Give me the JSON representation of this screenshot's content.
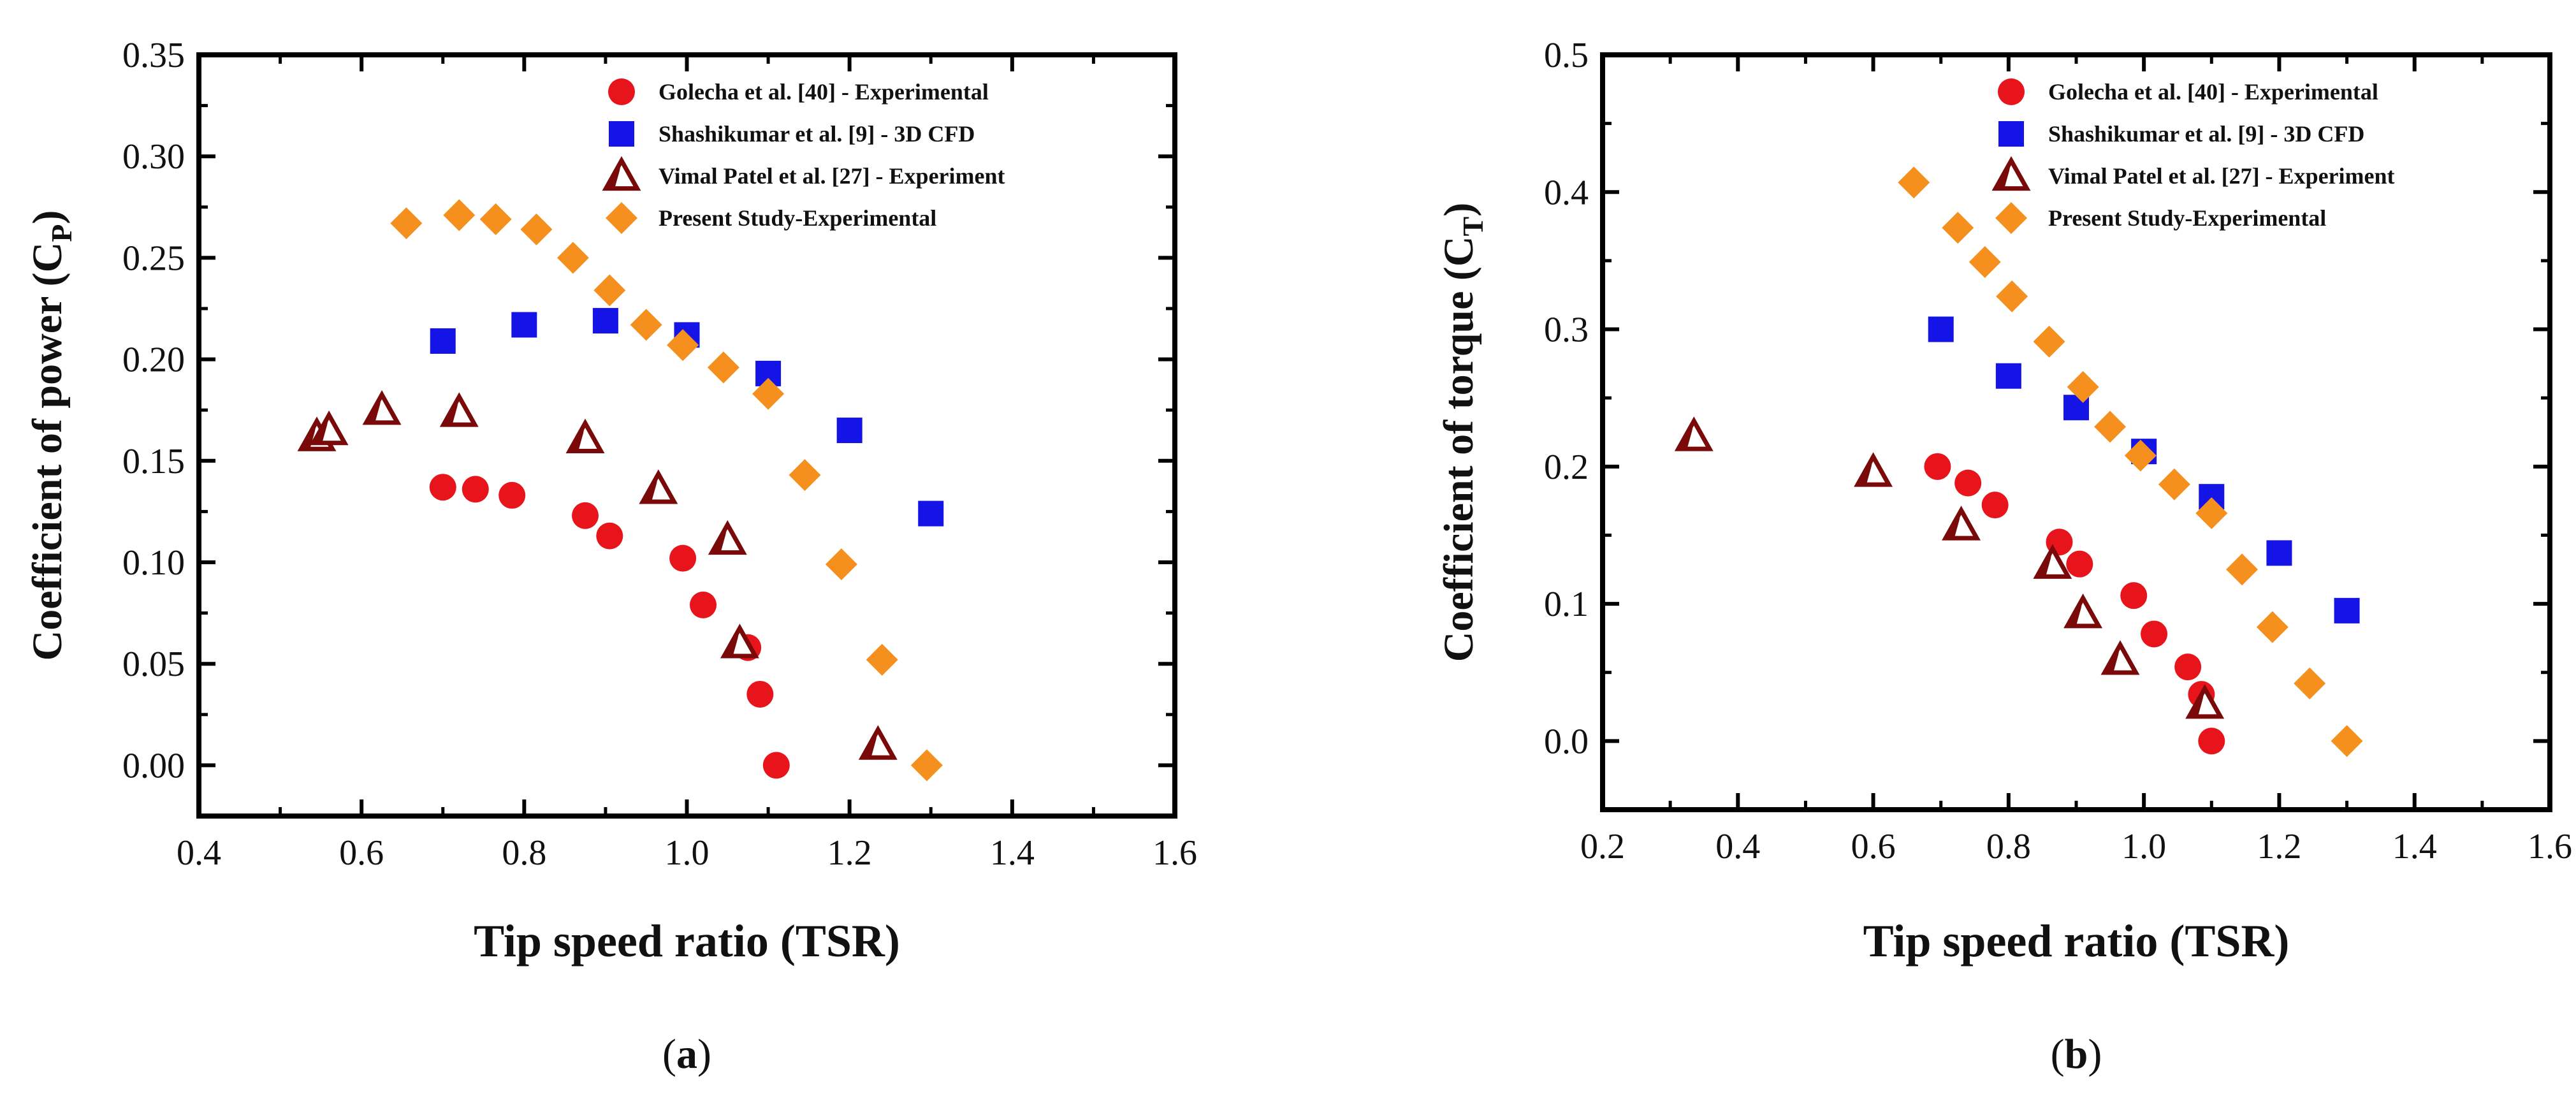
{
  "colors": {
    "golecha": "#e8141b",
    "shashikumar": "#1414e6",
    "vimal": "#7a0a0a",
    "present": "#f5901e",
    "axis": "#000000"
  },
  "chart_data": [
    {
      "type": "scatter",
      "panel_label": "(a)",
      "panel_letter": "a",
      "xlabel": "Tip speed ratio (TSR)",
      "ylabel_main": "Coefficient of power (C",
      "ylabel_sub": "P",
      "ylabel_close": ")",
      "xlim": [
        0.4,
        1.6
      ],
      "ylim": [
        -0.025,
        0.35
      ],
      "xticks": [
        "0.4",
        "0.6",
        "0.8",
        "1.0",
        "1.2",
        "1.4",
        "1.6"
      ],
      "yticks": [
        "0.00",
        "0.05",
        "0.10",
        "0.15",
        "0.20",
        "0.25",
        "0.30",
        "0.35"
      ],
      "series": [
        {
          "name": "Golecha et al. [40] - Experimental",
          "marker": "circle",
          "color_key": "golecha",
          "x": [
            0.7,
            0.74,
            0.785,
            0.875,
            0.905,
            0.995,
            1.02,
            1.075,
            1.09,
            1.11
          ],
          "y": [
            0.137,
            0.136,
            0.133,
            0.123,
            0.113,
            0.102,
            0.079,
            0.058,
            0.035,
            0.0
          ]
        },
        {
          "name": "Shashikumar et al. [9] - 3D CFD",
          "marker": "square",
          "color_key": "shashikumar",
          "x": [
            0.7,
            0.8,
            0.9,
            1.0,
            1.1,
            1.2,
            1.3
          ],
          "y": [
            0.209,
            0.217,
            0.219,
            0.212,
            0.193,
            0.165,
            0.124
          ]
        },
        {
          "name": "Vimal Patel et al. [27] - Experiment",
          "marker": "triangle",
          "color_key": "vimal",
          "x": [
            0.545,
            0.56,
            0.625,
            0.72,
            0.875,
            0.965,
            1.05,
            1.065,
            1.235
          ],
          "y": [
            0.162,
            0.165,
            0.175,
            0.174,
            0.161,
            0.136,
            0.111,
            0.06,
            0.01
          ]
        },
        {
          "name": "Present Study-Experimental",
          "marker": "diamond",
          "color_key": "present",
          "x": [
            0.655,
            0.72,
            0.765,
            0.815,
            0.86,
            0.905,
            0.95,
            0.995,
            1.045,
            1.1,
            1.145,
            1.19,
            1.24,
            1.295
          ],
          "y": [
            0.267,
            0.271,
            0.269,
            0.264,
            0.25,
            0.234,
            0.217,
            0.207,
            0.196,
            0.183,
            0.143,
            0.099,
            0.052,
            0.0
          ]
        }
      ]
    },
    {
      "type": "scatter",
      "panel_label": "(b)",
      "panel_letter": "b",
      "xlabel": "Tip speed ratio (TSR)",
      "ylabel_main": "Coefficient of torque (C",
      "ylabel_sub": "T",
      "ylabel_close": ")",
      "xlim": [
        0.2,
        1.6
      ],
      "ylim": [
        -0.05,
        0.5
      ],
      "xticks": [
        "0.2",
        "0.4",
        "0.6",
        "0.8",
        "1.0",
        "1.2",
        "1.4",
        "1.6"
      ],
      "yticks": [
        "0.0",
        "0.1",
        "0.2",
        "0.3",
        "0.4",
        "0.5"
      ],
      "series": [
        {
          "name": "Golecha et al. [40] - Experimental",
          "marker": "circle",
          "color_key": "golecha",
          "x": [
            0.695,
            0.74,
            0.78,
            0.875,
            0.905,
            0.985,
            1.015,
            1.065,
            1.085,
            1.1
          ],
          "y": [
            0.2,
            0.188,
            0.172,
            0.145,
            0.129,
            0.106,
            0.078,
            0.054,
            0.034,
            0.0
          ]
        },
        {
          "name": "Shashikumar et al. [9] - 3D CFD",
          "marker": "square",
          "color_key": "shashikumar",
          "x": [
            0.7,
            0.8,
            0.9,
            1.0,
            1.1,
            1.2,
            1.3
          ],
          "y": [
            0.3,
            0.266,
            0.243,
            0.211,
            0.178,
            0.137,
            0.095
          ]
        },
        {
          "name": "Vimal Patel et al. [27] - Experiment",
          "marker": "triangle",
          "color_key": "vimal",
          "x": [
            0.335,
            0.6,
            0.73,
            0.865,
            0.91,
            0.965,
            1.09
          ],
          "y": [
            0.222,
            0.196,
            0.157,
            0.129,
            0.093,
            0.059,
            0.027
          ]
        },
        {
          "name": "Present Study-Experimental",
          "marker": "diamond",
          "color_key": "present",
          "x": [
            0.66,
            0.725,
            0.765,
            0.805,
            0.86,
            0.91,
            0.95,
            0.995,
            1.045,
            1.1,
            1.145,
            1.19,
            1.245,
            1.3
          ],
          "y": [
            0.407,
            0.374,
            0.349,
            0.324,
            0.291,
            0.258,
            0.229,
            0.208,
            0.187,
            0.166,
            0.125,
            0.083,
            0.042,
            0.0
          ]
        }
      ]
    }
  ]
}
